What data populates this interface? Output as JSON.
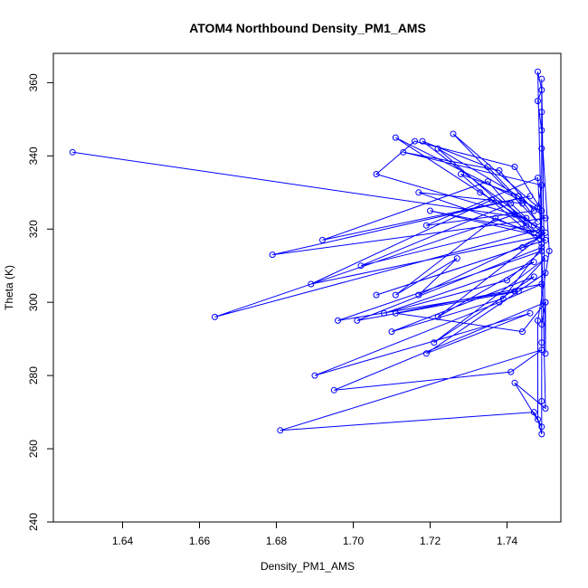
{
  "chart_data": {
    "type": "scatter",
    "mode": "lines+markers",
    "title": "ATOM4 Northbound Density_PM1_AMS",
    "xlabel": "Density_PM1_AMS",
    "ylabel": "Theta (K)",
    "xlim": [
      1.622,
      1.754
    ],
    "ylim": [
      240,
      368
    ],
    "xticks": [
      1.64,
      1.66,
      1.68,
      1.7,
      1.72,
      1.74
    ],
    "xtick_labels": [
      "1.64",
      "1.66",
      "1.68",
      "1.70",
      "1.72",
      "1.74"
    ],
    "yticks": [
      240,
      260,
      280,
      300,
      320,
      340,
      360
    ],
    "ytick_labels": [
      "240",
      "260",
      "280",
      "300",
      "320",
      "340",
      "360"
    ],
    "grid": false,
    "legend": "none",
    "color": "#0000ff",
    "series": [
      {
        "x": [
          1.627,
          1.745,
          1.706,
          1.716,
          1.742,
          1.749,
          1.711,
          1.733,
          1.747,
          1.718,
          1.735,
          1.744,
          1.717,
          1.747,
          1.722,
          1.743,
          1.748,
          1.726,
          1.748,
          1.749,
          1.713,
          1.738,
          1.747,
          1.719,
          1.748,
          1.749,
          1.728,
          1.743,
          1.75,
          1.679,
          1.746,
          1.692,
          1.735,
          1.745,
          1.702,
          1.741,
          1.749,
          1.72,
          1.749,
          1.689,
          1.736,
          1.749,
          1.664,
          1.742,
          1.749,
          1.717,
          1.727,
          1.711,
          1.737,
          1.75,
          1.706,
          1.744,
          1.75,
          1.722,
          1.747,
          1.708,
          1.74,
          1.749,
          1.696,
          1.742,
          1.75,
          1.721,
          1.747,
          1.71,
          1.739,
          1.749,
          1.701,
          1.743,
          1.75,
          1.719,
          1.746,
          1.69,
          1.738,
          1.749,
          1.711,
          1.744,
          1.75,
          1.695,
          1.741,
          1.749,
          1.681,
          1.747,
          1.749,
          1.742,
          1.75,
          1.748,
          1.749,
          1.748,
          1.749,
          1.751,
          1.748,
          1.748,
          1.749,
          1.749,
          1.749,
          1.749,
          1.749,
          1.75,
          1.75,
          1.749,
          1.749
        ],
        "y": [
          341,
          323,
          335,
          344,
          337,
          325,
          345,
          330,
          321,
          344,
          337,
          327,
          330,
          319,
          342,
          329,
          322,
          346,
          326,
          332,
          341,
          336,
          325,
          321,
          334,
          316,
          335,
          329,
          323,
          313,
          329,
          317,
          333,
          321,
          310,
          327,
          319,
          325,
          318,
          305,
          328,
          320,
          296,
          324,
          318,
          302,
          312,
          302,
          323,
          317,
          302,
          315,
          319,
          296,
          311,
          297,
          306,
          314,
          295,
          303,
          312,
          289,
          307,
          292,
          301,
          315,
          295,
          303,
          308,
          286,
          297,
          280,
          300,
          305,
          297,
          292,
          300,
          276,
          281,
          287,
          265,
          270,
          266,
          278,
          271,
          363,
          358,
          355,
          347,
          314,
          295,
          268,
          264,
          273,
          342,
          352,
          361,
          286,
          300,
          294,
          289
        ]
      }
    ]
  }
}
